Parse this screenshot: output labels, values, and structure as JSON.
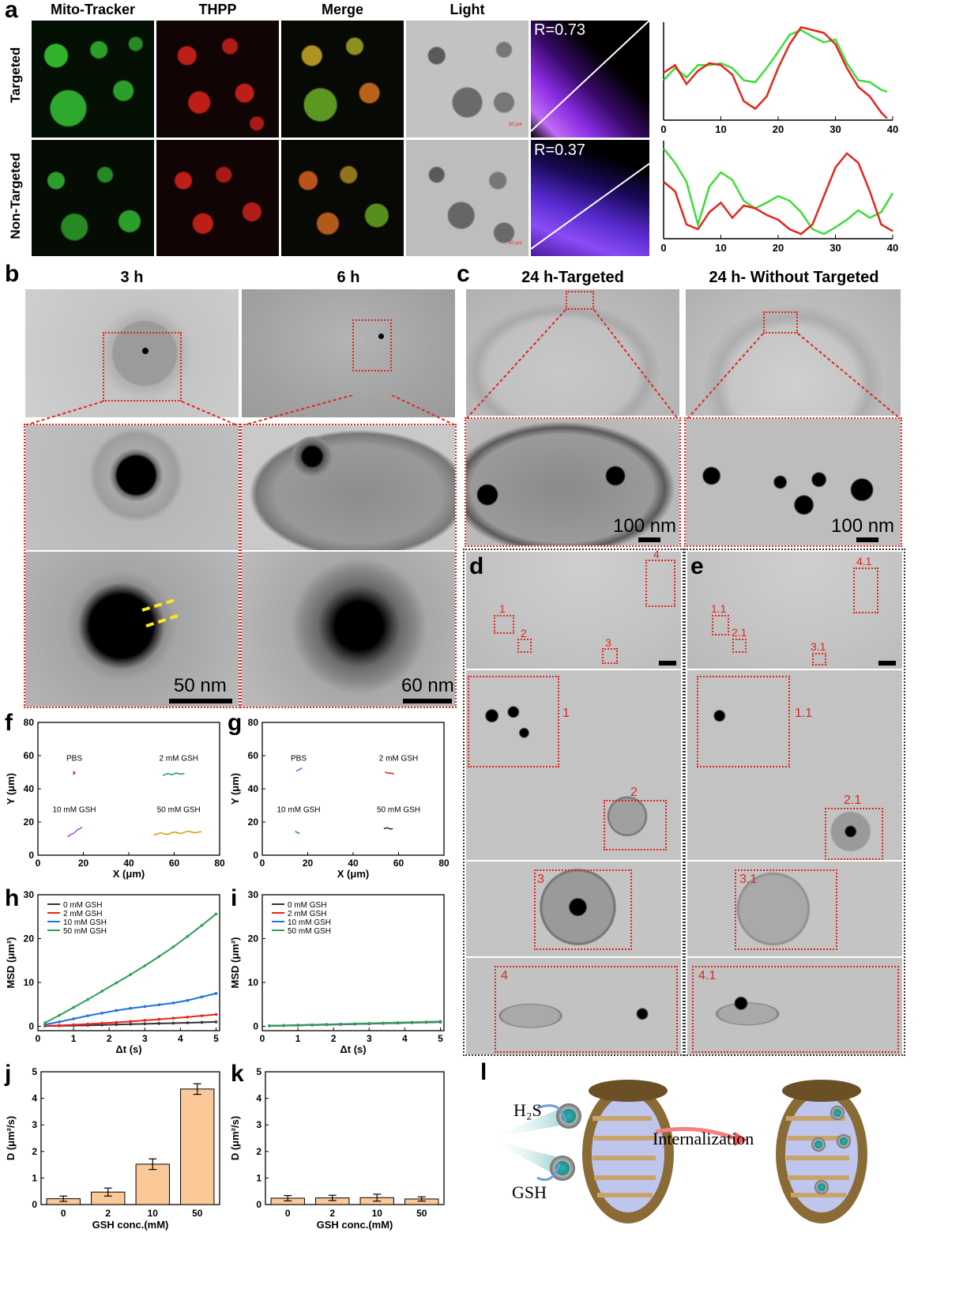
{
  "panel_a": {
    "letter": "a",
    "columns": [
      "Mito-Tracker",
      "THPP",
      "Merge",
      "Light"
    ],
    "rows": [
      "Targeted",
      "Non-Targeted"
    ],
    "pearson": [
      "R=0.73",
      "R=0.37"
    ],
    "scale_text": "50 μm",
    "colors": {
      "mito": "#3ddc3a",
      "thpp": "#e8241c",
      "scatter": "#8a2be2"
    }
  },
  "panel_b": {
    "letter": "b",
    "titles": [
      "3 h",
      "6 h"
    ],
    "scales": [
      "50 nm",
      "60 nm"
    ]
  },
  "panel_c": {
    "letter": "c",
    "titles": [
      "24 h-Targeted",
      "24 h- Without Targeted"
    ],
    "scales": [
      "100 nm",
      "100 nm"
    ]
  },
  "panel_d": {
    "letter": "d",
    "labels": [
      "1",
      "2",
      "3",
      "4"
    ]
  },
  "panel_e": {
    "letter": "e",
    "labels": [
      "1.1",
      "2.1",
      "3.1",
      "4.1"
    ]
  },
  "panel_l": {
    "letter": "l",
    "h2s": "H₂S",
    "gsh": "GSH",
    "internalization": "Internalization"
  },
  "chart_data": [
    {
      "id": "a-top",
      "type": "line",
      "xlim": [
        0,
        40
      ],
      "xticks": [
        0,
        10,
        20,
        30,
        40
      ],
      "x": [
        0,
        2,
        4,
        6,
        8,
        10,
        12,
        14,
        16,
        18,
        20,
        22,
        24,
        26,
        28,
        30,
        32,
        34,
        36,
        38,
        39
      ],
      "series": [
        {
          "color": "#3ddc3a",
          "values": [
            0.42,
            0.55,
            0.45,
            0.58,
            0.58,
            0.6,
            0.55,
            0.42,
            0.4,
            0.55,
            0.72,
            0.9,
            0.95,
            0.88,
            0.82,
            0.85,
            0.6,
            0.42,
            0.4,
            0.32,
            0.3
          ]
        },
        {
          "color": "#e8241c",
          "values": [
            0.5,
            0.58,
            0.38,
            0.52,
            0.6,
            0.58,
            0.48,
            0.2,
            0.12,
            0.25,
            0.55,
            0.8,
            0.98,
            0.95,
            0.92,
            0.8,
            0.55,
            0.35,
            0.25,
            0.08,
            0.02
          ]
        }
      ]
    },
    {
      "id": "a-bottom",
      "type": "line",
      "xlim": [
        0,
        40
      ],
      "xticks": [
        0,
        10,
        20,
        30,
        40
      ],
      "x": [
        0,
        2,
        4,
        6,
        8,
        10,
        12,
        14,
        16,
        18,
        20,
        22,
        24,
        26,
        28,
        30,
        32,
        34,
        36,
        38,
        40
      ],
      "series": [
        {
          "color": "#3ddc3a",
          "values": [
            0.95,
            0.8,
            0.6,
            0.15,
            0.55,
            0.7,
            0.62,
            0.4,
            0.32,
            0.38,
            0.45,
            0.4,
            0.28,
            0.1,
            0.05,
            0.12,
            0.2,
            0.3,
            0.22,
            0.28,
            0.48
          ]
        },
        {
          "color": "#e8241c",
          "values": [
            0.6,
            0.5,
            0.15,
            0.1,
            0.28,
            0.38,
            0.22,
            0.35,
            0.32,
            0.25,
            0.2,
            0.1,
            0.05,
            0.15,
            0.45,
            0.75,
            0.9,
            0.8,
            0.5,
            0.15,
            0.08
          ]
        }
      ]
    },
    {
      "id": "f",
      "type": "scatter",
      "xlabel": "X (μm)",
      "ylabel": "Y (μm)",
      "xlim": [
        0,
        80
      ],
      "ylim": [
        0,
        80
      ],
      "xticks": [
        0,
        20,
        40,
        60,
        80
      ],
      "yticks": [
        0,
        20,
        40,
        60,
        80
      ],
      "annotations": [
        {
          "text": "PBS",
          "x": 16,
          "y": 57
        },
        {
          "text": "2 mM GSH",
          "x": 62,
          "y": 57
        },
        {
          "text": "10 mM GSH",
          "x": 16,
          "y": 26
        },
        {
          "text": "50 mM GSH",
          "x": 62,
          "y": 26
        }
      ],
      "series": [
        {
          "color": "#e8241c",
          "x": [
            15.5,
            16.0,
            15.6,
            16.2,
            15.8
          ],
          "y": [
            48.5,
            49.5,
            50.5,
            49.8,
            48.8
          ]
        },
        {
          "color": "#2ca05a",
          "x": [
            55.0,
            57.0,
            59.0,
            61.0,
            63.0,
            64.5
          ],
          "y": [
            48.0,
            49.2,
            48.5,
            49.5,
            48.8,
            49.3
          ]
        },
        {
          "color": "#a25bd6",
          "x": [
            13.0,
            14.5,
            15.5,
            16.8,
            17.5,
            18.5,
            19.5
          ],
          "y": [
            11.0,
            12.5,
            13.0,
            14.5,
            15.5,
            16.0,
            17.0
          ]
        },
        {
          "color": "#d6a215",
          "x": [
            51.0,
            54.0,
            57.0,
            60.0,
            63.0,
            66.0,
            69.0,
            72.0
          ],
          "y": [
            12.0,
            13.5,
            12.5,
            14.0,
            13.0,
            14.5,
            13.5,
            14.2
          ]
        }
      ]
    },
    {
      "id": "g",
      "type": "scatter",
      "xlabel": "X (μm)",
      "ylabel": "Y (μm)",
      "xlim": [
        0,
        80
      ],
      "ylim": [
        0,
        80
      ],
      "xticks": [
        0,
        20,
        40,
        60,
        80
      ],
      "yticks": [
        0,
        20,
        40,
        60,
        80
      ],
      "annotations": [
        {
          "text": "PBS",
          "x": 16,
          "y": 57
        },
        {
          "text": "2 mM GSH",
          "x": 60,
          "y": 57
        },
        {
          "text": "10 mM GSH",
          "x": 16,
          "y": 26
        },
        {
          "text": "50 mM GSH",
          "x": 60,
          "y": 26
        }
      ],
      "series": [
        {
          "color": "#a25bd6",
          "x": [
            15.0,
            16.0,
            17.0,
            17.5
          ],
          "y": [
            50.5,
            51.5,
            52.0,
            52.8
          ]
        },
        {
          "color": "#e8241c",
          "x": [
            54.0,
            55.5,
            57.0,
            58.0
          ],
          "y": [
            50.0,
            49.5,
            49.3,
            49.0
          ]
        },
        {
          "color": "#2ca05a",
          "x": [
            14.5,
            15.5,
            16.0,
            16.5
          ],
          "y": [
            14.5,
            13.5,
            13.2,
            13.5
          ]
        },
        {
          "color": "#333333",
          "x": [
            53.5,
            55.0,
            56.5,
            57.5
          ],
          "y": [
            16.0,
            16.5,
            15.8,
            16.0
          ]
        }
      ]
    },
    {
      "id": "h",
      "type": "line",
      "xlabel": "Δt (s)",
      "ylabel": "MSD (μm²)",
      "xlim": [
        0,
        5.1
      ],
      "ylim": [
        -1,
        30
      ],
      "xticks": [
        0,
        1,
        2,
        3,
        4,
        5
      ],
      "yticks": [
        0,
        10,
        20,
        30
      ],
      "x": [
        0.2,
        0.6,
        1.0,
        1.4,
        1.8,
        2.2,
        2.6,
        3.0,
        3.4,
        3.8,
        4.2,
        4.6,
        5.0
      ],
      "series": [
        {
          "name": "0 mM GSH",
          "color": "#333333",
          "values": [
            0.05,
            0.1,
            0.15,
            0.22,
            0.3,
            0.4,
            0.48,
            0.56,
            0.65,
            0.72,
            0.8,
            0.9,
            1.0
          ]
        },
        {
          "name": "2 mM GSH",
          "color": "#e8241c",
          "values": [
            0.1,
            0.2,
            0.35,
            0.5,
            0.7,
            0.9,
            1.1,
            1.35,
            1.6,
            1.85,
            2.1,
            2.4,
            2.7
          ]
        },
        {
          "name": "10 mM GSH",
          "color": "#1f6fe0",
          "values": [
            0.4,
            1.0,
            1.7,
            2.4,
            3.0,
            3.6,
            4.1,
            4.5,
            4.9,
            5.3,
            5.9,
            6.7,
            7.5
          ]
        },
        {
          "name": "50 mM GSH",
          "color": "#2ca05a",
          "values": [
            0.8,
            2.5,
            4.3,
            6.1,
            8.0,
            9.9,
            11.8,
            13.8,
            15.9,
            18.1,
            20.5,
            23.0,
            25.6
          ]
        }
      ]
    },
    {
      "id": "i",
      "type": "line",
      "xlabel": "Δt (s)",
      "ylabel": "MSD (μm²)",
      "xlim": [
        0,
        5.1
      ],
      "ylim": [
        -1,
        30
      ],
      "xticks": [
        0,
        1,
        2,
        3,
        4,
        5
      ],
      "yticks": [
        0,
        10,
        20,
        30
      ],
      "x": [
        0.2,
        0.6,
        1.0,
        1.4,
        1.8,
        2.2,
        2.6,
        3.0,
        3.4,
        3.8,
        4.2,
        4.6,
        5.0
      ],
      "series": [
        {
          "name": "0 mM GSH",
          "color": "#333333",
          "values": [
            0.1,
            0.15,
            0.2,
            0.28,
            0.35,
            0.42,
            0.5,
            0.58,
            0.66,
            0.74,
            0.82,
            0.9,
            0.95
          ]
        },
        {
          "name": "2 mM GSH",
          "color": "#e8241c",
          "values": [
            0.1,
            0.16,
            0.22,
            0.3,
            0.38,
            0.45,
            0.53,
            0.6,
            0.68,
            0.76,
            0.85,
            0.92,
            1.0
          ]
        },
        {
          "name": "10 mM GSH",
          "color": "#1f6fe0",
          "values": [
            0.12,
            0.18,
            0.25,
            0.32,
            0.4,
            0.48,
            0.56,
            0.63,
            0.71,
            0.8,
            0.88,
            0.96,
            1.05
          ]
        },
        {
          "name": "50 mM GSH",
          "color": "#2ca05a",
          "values": [
            0.12,
            0.2,
            0.27,
            0.35,
            0.43,
            0.51,
            0.59,
            0.67,
            0.75,
            0.84,
            0.92,
            1.0,
            1.1
          ]
        }
      ]
    },
    {
      "id": "j",
      "type": "bar",
      "xlabel": "GSH conc.(mM)",
      "ylabel": "D (μm²/s)",
      "ylim": [
        0,
        5
      ],
      "yticks": [
        0,
        1,
        2,
        3,
        4,
        5
      ],
      "categories": [
        "0",
        "2",
        "10",
        "50"
      ],
      "values": [
        0.22,
        0.47,
        1.52,
        4.35
      ],
      "errors": [
        0.1,
        0.15,
        0.2,
        0.2
      ],
      "bar_color": "#fbc898"
    },
    {
      "id": "k",
      "type": "bar",
      "xlabel": "GSH conc.(mM)",
      "ylabel": "D (μm²/s)",
      "ylim": [
        0,
        5
      ],
      "yticks": [
        0,
        1,
        2,
        3,
        4,
        5
      ],
      "categories": [
        "0",
        "2",
        "10",
        "50"
      ],
      "values": [
        0.24,
        0.25,
        0.26,
        0.21
      ],
      "errors": [
        0.1,
        0.1,
        0.13,
        0.08
      ],
      "bar_color": "#fbc898"
    }
  ]
}
